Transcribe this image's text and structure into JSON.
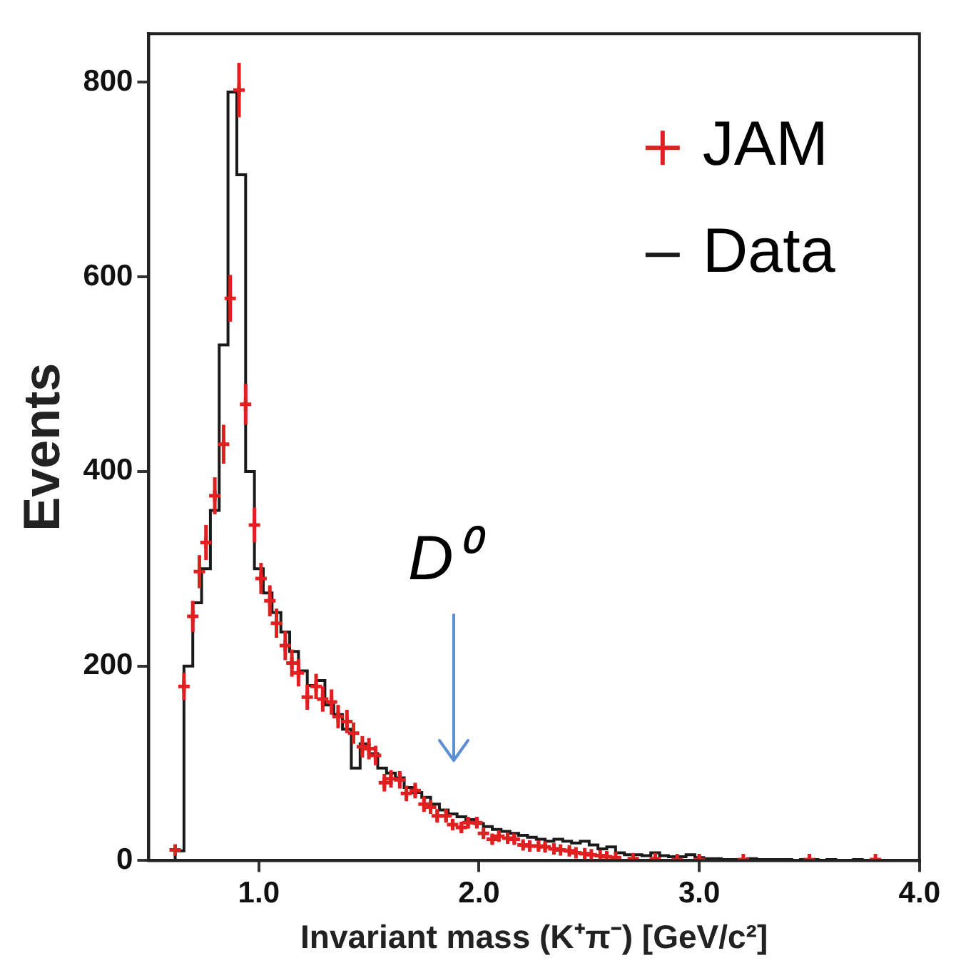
{
  "chart_data": {
    "type": "step",
    "xlabel": "Invariant mass (K⁺π⁻) [GeV/c²]",
    "ylabel": "Events",
    "xlim": [
      0.5,
      4.0
    ],
    "xticks": [
      {
        "value": 1,
        "label": "1.0"
      },
      {
        "value": 2,
        "label": "2.0"
      },
      {
        "value": 3,
        "label": "3.0"
      },
      {
        "value": 4,
        "label": "4.0"
      }
    ],
    "ylim": [
      0,
      850
    ],
    "yticks": [
      0,
      200,
      400,
      600,
      800
    ],
    "grid": false,
    "legend": "top right",
    "annotations": [
      "D⁰"
    ],
    "series": [
      {
        "name": "Data",
        "color": "#1a1a1a",
        "x": [
          0.6,
          0.64,
          0.68,
          0.72,
          0.76,
          0.8,
          0.84,
          0.88,
          0.92,
          0.96,
          1.0,
          1.04,
          1.08,
          1.12,
          1.16,
          1.2,
          1.24,
          1.28,
          1.32,
          1.36,
          1.4,
          1.44,
          1.48,
          1.52,
          1.56,
          1.6,
          1.64,
          1.68,
          1.72,
          1.76,
          1.8,
          1.84,
          1.88,
          1.92,
          1.96,
          2.0,
          2.04,
          2.08,
          2.12,
          2.16,
          2.2,
          2.24,
          2.28,
          2.32,
          2.36,
          2.4,
          2.44,
          2.48,
          2.52,
          2.56,
          2.6,
          2.64,
          2.68,
          2.72,
          2.76,
          2.8,
          2.84,
          2.88,
          2.92,
          2.96,
          3.0,
          3.04,
          3.08,
          3.12,
          3.16,
          3.2,
          3.24,
          3.28,
          3.32,
          3.36,
          3.4,
          3.44,
          3.48,
          3.52,
          3.56,
          3.6,
          3.64,
          3.68,
          3.72,
          3.76
        ],
        "values": [
          0,
          10,
          200,
          265,
          300,
          360,
          530,
          790,
          705,
          400,
          300,
          275,
          255,
          235,
          215,
          195,
          180,
          185,
          160,
          150,
          135,
          95,
          120,
          110,
          95,
          90,
          85,
          75,
          70,
          65,
          58,
          52,
          48,
          45,
          42,
          38,
          35,
          32,
          30,
          28,
          26,
          24,
          22,
          20,
          22,
          20,
          18,
          20,
          16,
          12,
          14,
          8,
          6,
          6,
          5,
          8,
          5,
          4,
          4,
          6,
          3,
          2,
          2,
          1,
          1,
          1,
          2,
          1,
          1,
          1,
          1,
          0,
          1,
          1,
          0,
          1,
          0,
          0,
          1,
          0
        ]
      },
      {
        "type": "scatter",
        "name": "JAM",
        "color": "#e02020",
        "marker": "cross",
        "x": [
          0.62,
          0.66,
          0.7,
          0.73,
          0.76,
          0.8,
          0.84,
          0.87,
          0.91,
          0.94,
          0.98,
          1.01,
          1.05,
          1.08,
          1.12,
          1.15,
          1.18,
          1.22,
          1.26,
          1.29,
          1.33,
          1.36,
          1.4,
          1.43,
          1.47,
          1.5,
          1.53,
          1.57,
          1.6,
          1.64,
          1.67,
          1.71,
          1.75,
          1.78,
          1.81,
          1.85,
          1.88,
          1.92,
          1.95,
          1.99,
          2.02,
          2.06,
          2.09,
          2.13,
          2.16,
          2.2,
          2.23,
          2.27,
          2.3,
          2.34,
          2.37,
          2.41,
          2.44,
          2.48,
          2.51,
          2.55,
          2.58,
          2.62,
          2.7,
          2.8,
          2.9,
          3.0,
          3.2,
          3.5,
          3.8
        ],
        "values": [
          11,
          179,
          251,
          297,
          327,
          375,
          428,
          578,
          792,
          469,
          345,
          290,
          267,
          244,
          221,
          203,
          193,
          168,
          179,
          166,
          163,
          148,
          143,
          131,
          117,
          115,
          108,
          80,
          84,
          83,
          69,
          72,
          58,
          55,
          46,
          46,
          37,
          34,
          39,
          39,
          28,
          22,
          25,
          23,
          22,
          16,
          15,
          15,
          14,
          12,
          11,
          10,
          8,
          7,
          6,
          5,
          4,
          3,
          2,
          2,
          1,
          1,
          1,
          1,
          1
        ],
        "errors": [
          4,
          14,
          16,
          17,
          18,
          19,
          20,
          24,
          28,
          21,
          18,
          16,
          16,
          15,
          15,
          14,
          14,
          13,
          13,
          13,
          13,
          12,
          12,
          11,
          11,
          11,
          10,
          9,
          9,
          9,
          8,
          8,
          8,
          7,
          7,
          7,
          6,
          6,
          6,
          6,
          5,
          5,
          5,
          5,
          5,
          4,
          4,
          4,
          4,
          3,
          3,
          3,
          3,
          3,
          null,
          null,
          null,
          null,
          null,
          null,
          null,
          null,
          null,
          null,
          null
        ]
      }
    ]
  }
}
